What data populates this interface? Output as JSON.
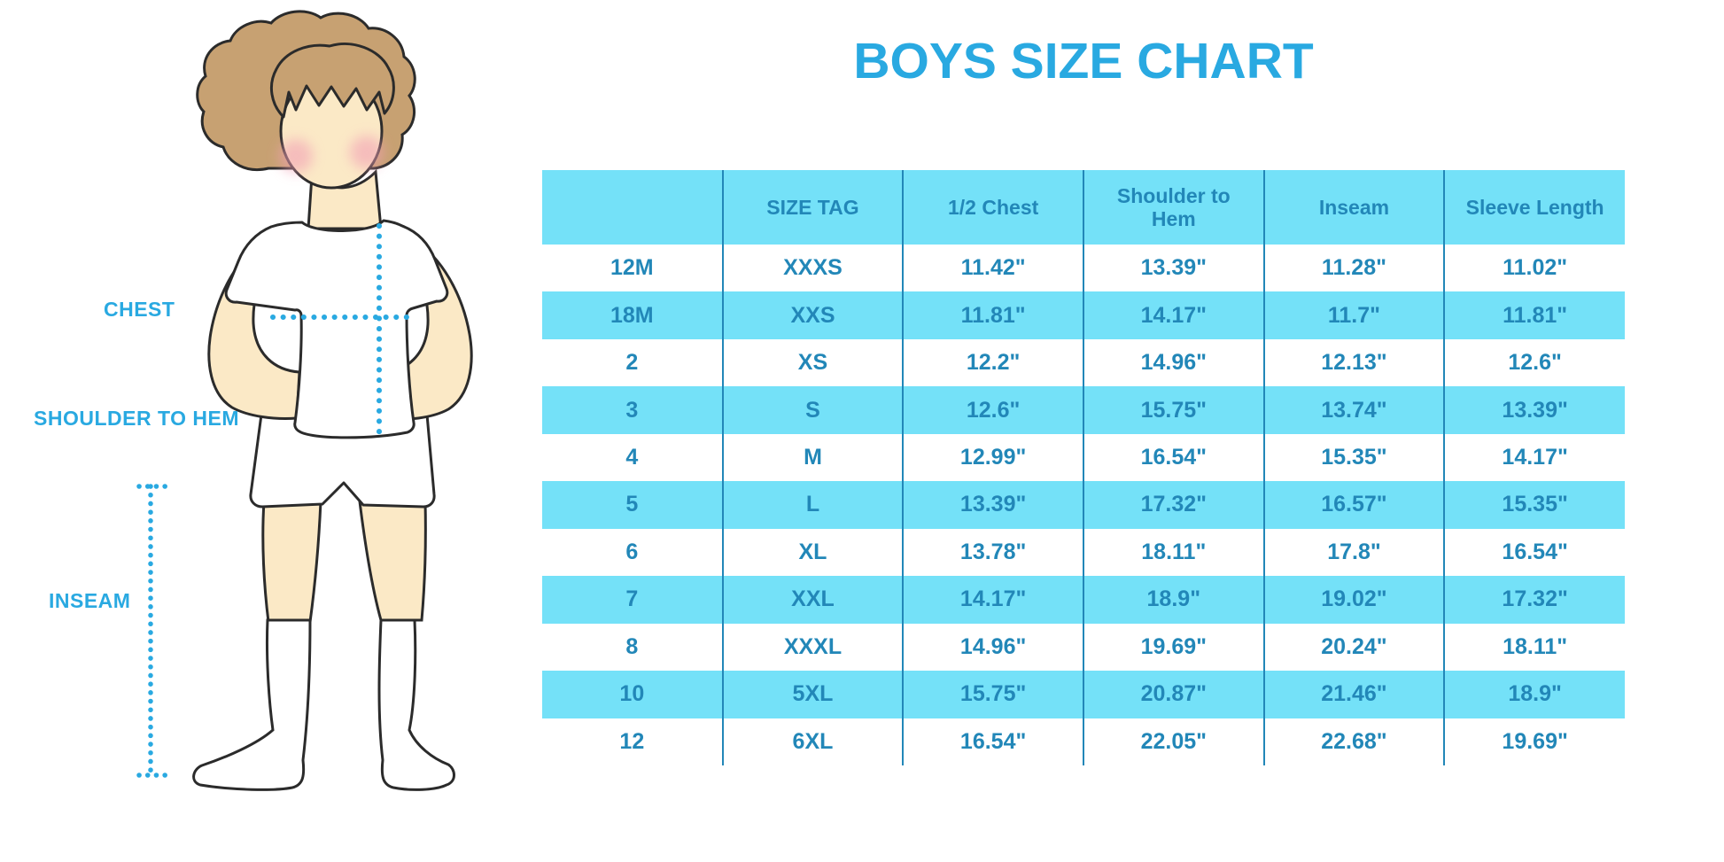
{
  "title": "BOYS SIZE CHART",
  "figure_labels": {
    "chest": "CHEST",
    "shoulder_to_hem": "SHOULDER TO HEM",
    "inseam": "INSEAM"
  },
  "colors": {
    "accent_cyan": "#29A9E1",
    "table_text_blue": "#2287B8",
    "stripe_blue": "#74E1F8",
    "skin": "#FBE9C6",
    "hair": "#C7A172",
    "cheek": "#F2A0B5",
    "outline": "#2B2B2B"
  },
  "chart_data": {
    "type": "table",
    "title": "BOYS SIZE CHART",
    "columns": [
      "",
      "SIZE TAG",
      "1/2 Chest",
      "Shoulder to Hem",
      "Inseam",
      "Sleeve Length"
    ],
    "rows": [
      [
        "12M",
        "XXXS",
        "11.42\"",
        "13.39\"",
        "11.28\"",
        "11.02\""
      ],
      [
        "18M",
        "XXS",
        "11.81\"",
        "14.17\"",
        "11.7\"",
        "11.81\""
      ],
      [
        "2",
        "XS",
        "12.2\"",
        "14.96\"",
        "12.13\"",
        "12.6\""
      ],
      [
        "3",
        "S",
        "12.6\"",
        "15.75\"",
        "13.74\"",
        "13.39\""
      ],
      [
        "4",
        "M",
        "12.99\"",
        "16.54\"",
        "15.35\"",
        "14.17\""
      ],
      [
        "5",
        "L",
        "13.39\"",
        "17.32\"",
        "16.57\"",
        "15.35\""
      ],
      [
        "6",
        "XL",
        "13.78\"",
        "18.11\"",
        "17.8\"",
        "16.54\""
      ],
      [
        "7",
        "XXL",
        "14.17\"",
        "18.9\"",
        "19.02\"",
        "17.32\""
      ],
      [
        "8",
        "XXXL",
        "14.96\"",
        "19.69\"",
        "20.24\"",
        "18.11\""
      ],
      [
        "10",
        "5XL",
        "15.75\"",
        "20.87\"",
        "21.46\"",
        "18.9\""
      ],
      [
        "12",
        "6XL",
        "16.54\"",
        "22.05\"",
        "22.68\"",
        "19.69\""
      ]
    ]
  }
}
